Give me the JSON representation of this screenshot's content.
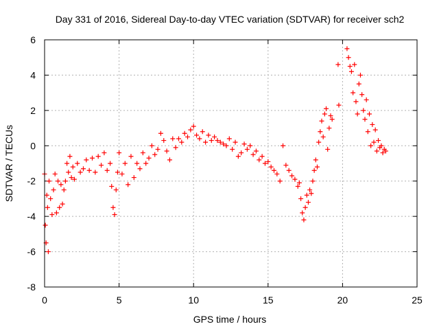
{
  "chart_data": {
    "type": "scatter",
    "title": "Day 331 of 2016, Sidereal Day-to-day VTEC variation (SDTVAR) for receiver sch2",
    "xlabel": "GPS time / hours",
    "ylabel": "SDTVAR / TECUs",
    "xlim": [
      0,
      25
    ],
    "ylim": [
      -8,
      6
    ],
    "x_ticks": [
      0,
      5,
      10,
      15,
      20,
      25
    ],
    "y_ticks": [
      -8,
      -6,
      -4,
      -2,
      0,
      2,
      4,
      6
    ],
    "grid": true,
    "marker": "+",
    "marker_color": "#ff0000",
    "series": [
      {
        "name": "SDTVAR",
        "x": [
          0.0,
          0.05,
          0.1,
          0.15,
          0.2,
          0.25,
          0.3,
          0.4,
          0.5,
          0.6,
          0.7,
          0.8,
          0.9,
          1.0,
          1.1,
          1.2,
          1.3,
          1.4,
          1.5,
          1.6,
          1.7,
          1.8,
          1.9,
          2.0,
          2.2,
          2.4,
          2.6,
          2.8,
          3.0,
          3.2,
          3.4,
          3.6,
          3.8,
          4.0,
          4.2,
          4.4,
          4.5,
          4.6,
          4.7,
          4.8,
          4.9,
          5.0,
          5.2,
          5.4,
          5.6,
          5.8,
          6.0,
          6.2,
          6.4,
          6.6,
          6.8,
          7.0,
          7.2,
          7.4,
          7.6,
          7.8,
          8.0,
          8.2,
          8.4,
          8.6,
          8.8,
          9.0,
          9.2,
          9.4,
          9.6,
          9.8,
          10.0,
          10.2,
          10.4,
          10.6,
          10.8,
          11.0,
          11.2,
          11.4,
          11.6,
          11.8,
          12.0,
          12.2,
          12.4,
          12.6,
          12.8,
          13.0,
          13.2,
          13.4,
          13.6,
          13.8,
          14.0,
          14.2,
          14.4,
          14.6,
          14.8,
          15.0,
          15.2,
          15.4,
          15.6,
          15.8,
          16.0,
          16.2,
          16.4,
          16.6,
          16.8,
          17.0,
          17.1,
          17.2,
          17.3,
          17.4,
          17.5,
          17.6,
          17.7,
          17.8,
          17.9,
          18.0,
          18.1,
          18.2,
          18.3,
          18.4,
          18.5,
          18.6,
          18.7,
          18.8,
          18.9,
          19.0,
          19.1,
          19.2,
          19.3,
          19.7,
          19.75,
          20.3,
          20.4,
          20.5,
          20.6,
          20.7,
          20.8,
          20.9,
          21.0,
          21.1,
          21.2,
          21.3,
          21.4,
          21.5,
          21.6,
          21.7,
          21.8,
          21.9,
          22.0,
          22.1,
          22.2,
          22.3,
          22.4,
          22.5,
          22.6,
          22.7,
          22.8,
          22.9
        ],
        "y": [
          -1.6,
          -4.5,
          -5.5,
          -2.8,
          -3.5,
          -6.0,
          -2.0,
          -3.0,
          -3.9,
          -2.5,
          -1.6,
          -3.8,
          -2.0,
          -3.5,
          -2.2,
          -3.3,
          -2.5,
          -2.0,
          -1.0,
          -1.5,
          -0.6,
          -1.8,
          -1.2,
          -1.9,
          -1.0,
          -1.5,
          -1.3,
          -0.8,
          -1.4,
          -0.7,
          -1.5,
          -0.6,
          -1.1,
          -0.4,
          -1.4,
          -1.0,
          -2.3,
          -3.5,
          -3.9,
          -2.5,
          -1.5,
          -0.4,
          -1.6,
          -1.0,
          -2.2,
          -0.6,
          -1.8,
          -1.0,
          -1.3,
          -0.4,
          -1.0,
          -0.7,
          0.0,
          -0.5,
          -0.2,
          0.7,
          0.3,
          -0.3,
          -0.8,
          0.4,
          -0.1,
          0.4,
          0.2,
          0.7,
          0.5,
          0.9,
          1.1,
          0.6,
          0.4,
          0.8,
          0.2,
          0.6,
          0.3,
          0.5,
          0.3,
          0.2,
          0.1,
          0.0,
          0.4,
          -0.2,
          0.2,
          -0.6,
          -0.4,
          0.1,
          -0.2,
          0.0,
          -0.5,
          -0.3,
          -0.8,
          -0.6,
          -1.0,
          -0.9,
          -1.2,
          -1.4,
          -1.6,
          -2.0,
          0.0,
          -1.1,
          -1.4,
          -1.7,
          -1.9,
          -2.3,
          -2.1,
          -3.0,
          -3.8,
          -4.2,
          -3.5,
          -2.8,
          -3.2,
          -2.5,
          -2.7,
          -2.0,
          -1.4,
          -0.8,
          -1.2,
          0.2,
          0.8,
          1.4,
          0.5,
          1.8,
          2.1,
          -0.2,
          1.0,
          1.7,
          1.5,
          4.6,
          2.3,
          5.5,
          5.0,
          4.5,
          4.2,
          3.0,
          4.6,
          2.5,
          1.8,
          3.5,
          4.0,
          2.9,
          2.0,
          1.5,
          2.6,
          0.8,
          1.8,
          0.0,
          1.2,
          0.2,
          0.9,
          -0.3,
          0.3,
          -0.1,
          0.0,
          -0.4,
          -0.2,
          -0.3
        ]
      }
    ]
  }
}
